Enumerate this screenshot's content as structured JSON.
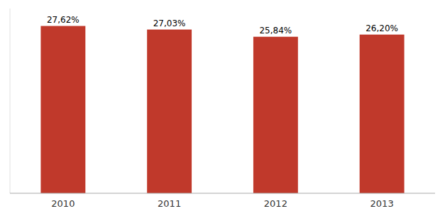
{
  "chart_data": {
    "type": "bar",
    "categories": [
      "2010",
      "2011",
      "2012",
      "2013"
    ],
    "values": [
      27.62,
      27.03,
      25.84,
      26.2
    ],
    "value_labels": [
      "27,62%",
      "27,03%",
      "25,84%",
      "26,20%"
    ],
    "data_labels": true,
    "color": "#C0392B",
    "ylim": [
      0,
      30.5
    ],
    "tick_labels": "x",
    "grid": false
  }
}
